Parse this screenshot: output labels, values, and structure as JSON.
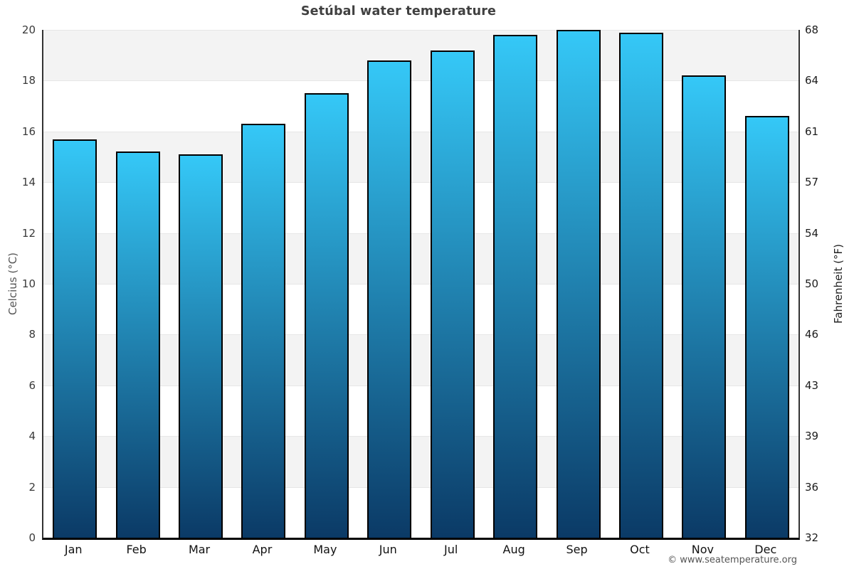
{
  "chart_data": {
    "type": "bar",
    "title": "Setúbal water temperature",
    "categories": [
      "Jan",
      "Feb",
      "Mar",
      "Apr",
      "May",
      "Jun",
      "Jul",
      "Aug",
      "Sep",
      "Oct",
      "Nov",
      "Dec"
    ],
    "values": [
      15.7,
      15.2,
      15.1,
      16.3,
      17.5,
      18.8,
      19.2,
      19.8,
      20.0,
      19.9,
      18.2,
      16.6
    ],
    "unit": "°C",
    "ylabel_left": "Celcius (°C)",
    "ylabel_right": "Fahrenheit (°F)",
    "ylim": [
      0,
      20
    ],
    "yticks_celsius": [
      "0",
      "2",
      "4",
      "6",
      "8",
      "10",
      "12",
      "14",
      "16",
      "18",
      "20"
    ],
    "yticks_fahrenheit": [
      "32",
      "36",
      "39",
      "43",
      "46",
      "50",
      "54",
      "57",
      "61",
      "64",
      "68"
    ],
    "xlabel": "",
    "legend": "none",
    "grid": "alternating horizontal bands every 2°C, shaded band at top (18–20)",
    "colors": {
      "bar_gradient_top": "#35c8f7",
      "bar_gradient_bottom": "#0b3a66",
      "bar_border": "#000000",
      "band_shaded": "#f3f3f3",
      "band_plain": "#ffffff",
      "gridline": "#e6e6e6",
      "axis_line": "#333333",
      "baseline": "#000000",
      "title_text": "#404040",
      "tick_text": "#3a3a3a",
      "axis_title_text": "#555555",
      "footer_text": "#555555"
    }
  },
  "footer": {
    "copyright": "© www.seatemperature.org"
  }
}
